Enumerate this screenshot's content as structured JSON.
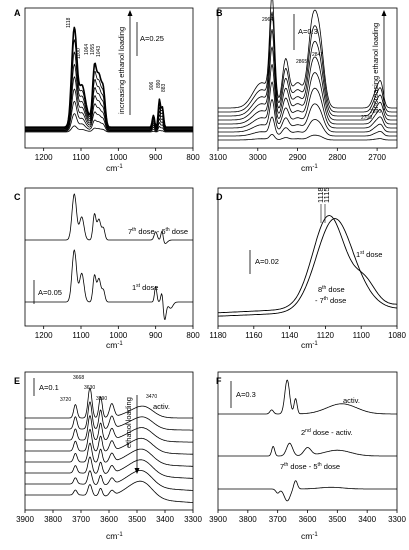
{
  "chart_data": [
    {
      "panel": "A",
      "type": "line",
      "xlabel": "cm-1",
      "xlim": [
        1250,
        800
      ],
      "xticks": [
        1200,
        1100,
        1000,
        900,
        800
      ],
      "scale_bar": "A=0.25",
      "arrow_label": "increasing ethanol loading",
      "peak_labels": [
        "1118",
        "1100",
        "1064",
        "1055",
        "1043",
        "906",
        "890",
        "883"
      ],
      "series_count": 9
    },
    {
      "panel": "B",
      "type": "line",
      "xlabel": "cm-1",
      "xlim": [
        3100,
        2650
      ],
      "xticks": [
        3100,
        3000,
        2900,
        2800,
        2700
      ],
      "scale_bar": "A=0.3",
      "arrow_label": "increasing ethanol loading",
      "peak_labels": [
        "2964",
        "2865",
        "2847",
        "2690",
        "2700"
      ],
      "series_count": 9
    },
    {
      "panel": "C",
      "type": "line",
      "xlabel": "cm-1",
      "xlim": [
        1250,
        800
      ],
      "xticks": [
        1200,
        1100,
        1000,
        900,
        800
      ],
      "scale_bar": "A=0.05",
      "series_labels": [
        "7th dose - 6th dose",
        "1st dose"
      ]
    },
    {
      "panel": "D",
      "type": "line",
      "xlabel": "cm-1",
      "xlim": [
        1180,
        1080
      ],
      "xticks": [
        1180,
        1160,
        1140,
        1120,
        1100,
        1080
      ],
      "scale_bar": "A=0.02",
      "peak_labels": [
        "1118",
        "1115"
      ],
      "series_labels": [
        "1st dose",
        "8th dose - 7th dose"
      ]
    },
    {
      "panel": "E",
      "type": "line",
      "xlabel": "cm-1",
      "xlim": [
        3900,
        3300
      ],
      "xticks": [
        3900,
        3800,
        3700,
        3600,
        3500,
        3400,
        3300
      ],
      "scale_bar": "A=0.1",
      "arrow_label": "ethanol loading",
      "top_label": "activ.",
      "peak_labels": [
        "3668",
        "3630",
        "3720",
        "3590",
        "3470"
      ],
      "series_count": 8
    },
    {
      "panel": "F",
      "type": "line",
      "xlabel": "cm-1",
      "xlim": [
        3900,
        3300
      ],
      "xticks": [
        3900,
        3800,
        3700,
        3600,
        3500,
        3400,
        3300
      ],
      "scale_bar": "A=0.3",
      "series_labels": [
        "activ.",
        "2nd dose - activ.",
        "7th dose - 5th dose"
      ]
    }
  ],
  "ordinals": {
    "th": "th",
    "nd": "nd",
    "st": "st"
  }
}
